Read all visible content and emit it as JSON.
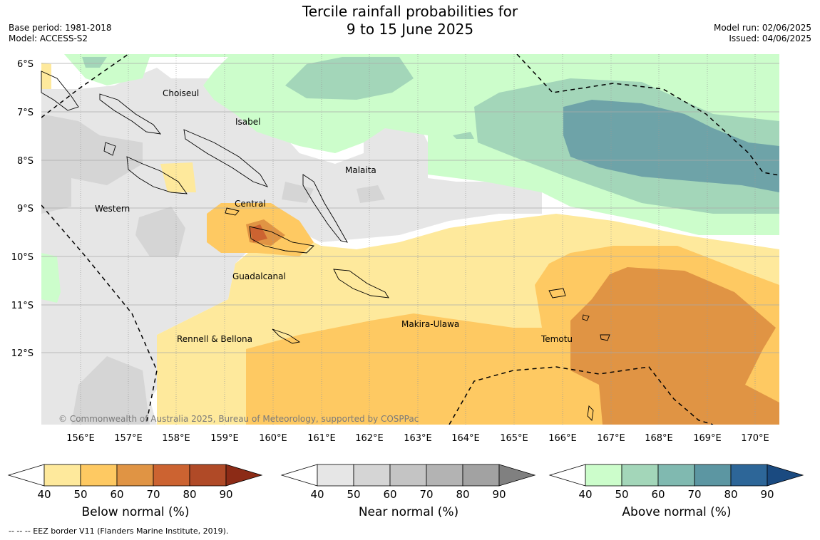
{
  "header": {
    "title_line1": "Tercile rainfall probabilities for",
    "title_line2": "9 to 15 June 2025",
    "base_period": "Base period: 1981-2018",
    "model": "Model: ACCESS-S2",
    "model_run": "Model run: 02/06/2025",
    "issued": "Issued: 04/06/2025"
  },
  "map": {
    "copyright": "© Commonwealth of Australia 2025, Bureau of Meteorology, supported by COSPPac",
    "lat_labels": [
      "6°S",
      "7°S",
      "8°S",
      "9°S",
      "10°S",
      "11°S",
      "12°S"
    ],
    "lon_labels": [
      "156°E",
      "157°E",
      "158°E",
      "159°E",
      "160°E",
      "161°E",
      "162°E",
      "163°E",
      "164°E",
      "165°E",
      "166°E",
      "167°E",
      "168°E",
      "169°E",
      "170°E"
    ],
    "region_labels": {
      "choiseul": "Choiseul",
      "isabel": "Isabel",
      "malaita": "Malaita",
      "western": "Western",
      "central": "Central",
      "guadalcanal": "Guadalcanal",
      "makira": "Makira-Ulawa",
      "temotu": "Temotu",
      "rennell": "Rennell & Bellona"
    }
  },
  "colorbars": {
    "ticks": [
      "40",
      "50",
      "60",
      "70",
      "80",
      "90"
    ],
    "below": {
      "title": "Below normal (%)",
      "colors": [
        "#fee99c",
        "#fec962",
        "#e09444",
        "#cc6331",
        "#b04a27",
        "#8c2b16"
      ]
    },
    "near": {
      "title": "Near normal (%)",
      "colors": [
        "#e6e6e6",
        "#d5d5d5",
        "#c4c4c4",
        "#b3b3b3",
        "#a2a2a2",
        "#808080"
      ]
    },
    "above": {
      "title": "Above normal (%)",
      "colors": [
        "#ccfdcb",
        "#a3d6b9",
        "#80b9b0",
        "#5c96a2",
        "#2d6698",
        "#1a4a80"
      ]
    }
  },
  "footer": {
    "eez_note": "--  --  -- EEZ border V11 (Flanders Marine Institute, 2019)."
  }
}
